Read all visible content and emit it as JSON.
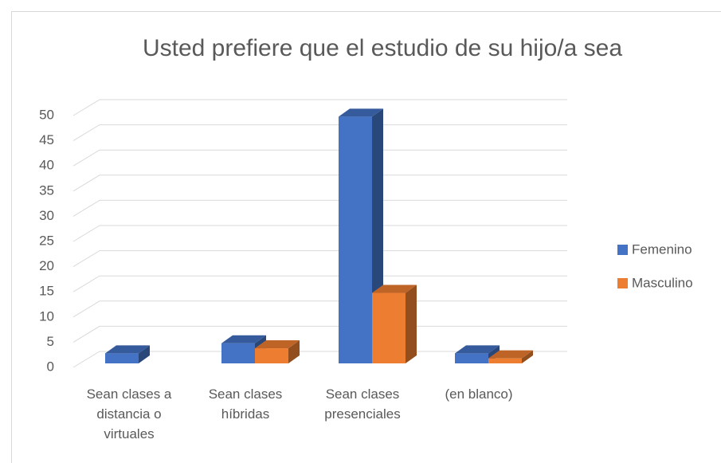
{
  "chart_data": {
    "type": "bar3d",
    "title": "Usted prefiere que el estudio de su hijo/a sea",
    "categories": [
      "Sean clases a distancia o virtuales",
      "Sean clases híbridas",
      "Sean clases presenciales",
      "(en blanco)"
    ],
    "series": [
      {
        "name": "Femenino",
        "color": "#4472c4",
        "values": [
          2,
          4,
          49,
          2
        ]
      },
      {
        "name": "Masculino",
        "color": "#ed7d31",
        "values": [
          0,
          3,
          14,
          1
        ]
      }
    ],
    "ylim": [
      0,
      50
    ],
    "yticks": [
      0,
      5,
      10,
      15,
      20,
      25,
      30,
      35,
      40,
      45,
      50
    ],
    "grid": true,
    "legend": "right"
  }
}
